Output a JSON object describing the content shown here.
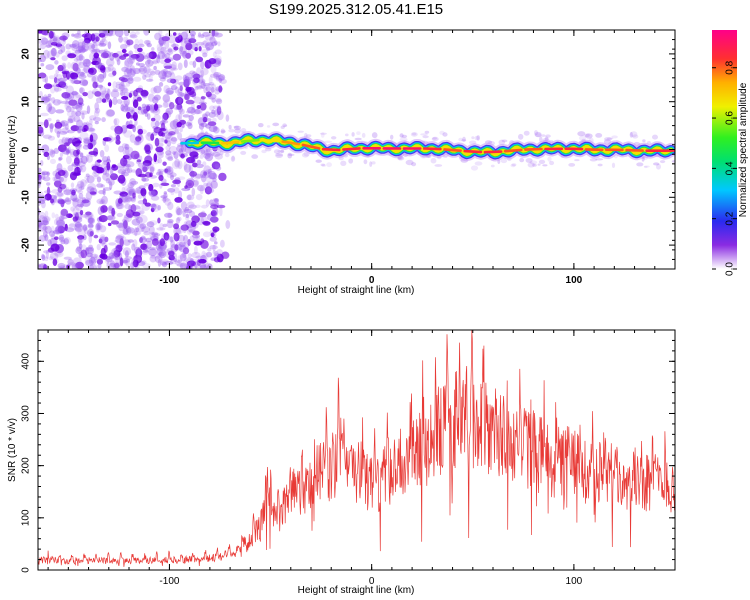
{
  "title": "S199.2025.312.05.41.E15",
  "colors": {
    "signal": "#e83a36",
    "cloud": "#9a5cf0",
    "cloudDark": "#6a00e0"
  },
  "chart_data": [
    {
      "type": "heatmap",
      "xlabel": "Height of straight line (km)",
      "ylabel": "Frequency (Hz)",
      "xlim": [
        -165,
        150
      ],
      "ylim": [
        -25,
        25
      ],
      "xticks": [
        -100,
        0,
        100
      ],
      "yticks": [
        20,
        10,
        0,
        -10,
        -20
      ],
      "xtick_labels": [
        "-100",
        "0",
        "100"
      ],
      "ytick_labels": [
        "20",
        "10",
        "0",
        "-10",
        "-20"
      ],
      "noise_region_x": [
        -165,
        -75
      ],
      "ridge": {
        "x": [
          -90,
          -80,
          -70,
          -60,
          -50,
          -40,
          -30,
          -20,
          -10,
          0,
          10,
          20,
          30,
          40,
          50,
          60,
          70,
          80,
          90,
          100,
          110,
          120,
          130,
          140,
          148
        ],
        "freq": [
          1.3,
          1.5,
          1.2,
          2.0,
          1.9,
          1.5,
          0.6,
          -0.3,
          0.2,
          0.3,
          0.2,
          0.2,
          0.2,
          -0.1,
          -0.5,
          -0.6,
          -0.2,
          0.1,
          0.1,
          0.2,
          -0.1,
          0.0,
          -0.2,
          -0.3,
          -0.2
        ],
        "amplitude": [
          0.35,
          0.5,
          0.75,
          0.6,
          0.7,
          0.8,
          0.85,
          0.9,
          0.9,
          0.95,
          0.95,
          0.95,
          0.9,
          0.85,
          0.9,
          0.9,
          0.85,
          0.85,
          0.9,
          0.9,
          0.85,
          0.85,
          0.85,
          0.9,
          0.9
        ]
      },
      "colorbar": {
        "label": "Normalized spectral amplitude",
        "range": [
          0,
          0.95
        ],
        "ticks": [
          0.0,
          0.2,
          0.4,
          0.6,
          0.8
        ],
        "tick_labels": [
          "0.0",
          "0.2",
          "0.4",
          "0.6",
          "0.8"
        ]
      }
    },
    {
      "type": "line",
      "xlabel": "Height of straight line (km)",
      "ylabel": "SNR (10 * v/v)",
      "xlim": [
        -165,
        150
      ],
      "ylim": [
        0,
        460
      ],
      "xticks": [
        -100,
        0,
        100
      ],
      "yticks": [
        0,
        100,
        200,
        300,
        400
      ],
      "xtick_labels": [
        "-100",
        "0",
        "100"
      ],
      "ytick_labels": [
        "0",
        "100",
        "200",
        "300",
        "400"
      ],
      "series": [
        {
          "name": "SNR",
          "x": [
            -165,
            -150,
            -130,
            -110,
            -90,
            -80,
            -70,
            -62,
            -55,
            -52,
            -50,
            -48,
            -45,
            -40,
            -30,
            -20,
            -15,
            -10,
            0,
            10,
            20,
            30,
            35,
            40,
            45,
            48,
            50,
            55,
            60,
            70,
            80,
            90,
            100,
            110,
            120,
            130,
            140,
            150
          ],
          "base": [
            20,
            18,
            18,
            18,
            20,
            22,
            30,
            50,
            80,
            140,
            160,
            90,
            110,
            150,
            170,
            200,
            220,
            200,
            160,
            190,
            210,
            250,
            270,
            290,
            280,
            300,
            290,
            270,
            260,
            240,
            230,
            210,
            200,
            190,
            180,
            175,
            170,
            160
          ],
          "peak": [
            35,
            30,
            30,
            32,
            35,
            40,
            55,
            80,
            120,
            240,
            270,
            130,
            170,
            230,
            260,
            300,
            330,
            280,
            260,
            300,
            330,
            380,
            400,
            430,
            440,
            460,
            450,
            410,
            380,
            360,
            330,
            300,
            280,
            270,
            260,
            250,
            240,
            235
          ]
        }
      ]
    }
  ]
}
